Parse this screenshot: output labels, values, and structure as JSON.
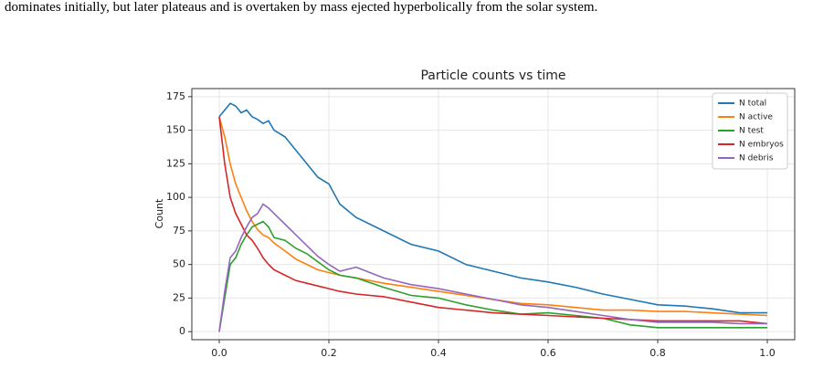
{
  "caption_line": "dominates initially, but later plateaus and is overtaken by mass ejected hyperbolically from the solar system.",
  "chart_data": {
    "type": "line",
    "title": "Particle counts vs time",
    "ylabel": "Count",
    "x": [
      0,
      0.01,
      0.02,
      0.03,
      0.04,
      0.05,
      0.06,
      0.07,
      0.08,
      0.09,
      0.1,
      0.12,
      0.14,
      0.16,
      0.18,
      0.2,
      0.22,
      0.25,
      0.3,
      0.35,
      0.4,
      0.45,
      0.5,
      0.55,
      0.6,
      0.65,
      0.7,
      0.75,
      0.8,
      0.85,
      0.9,
      0.95,
      1.0
    ],
    "series": [
      {
        "name": "N total",
        "color": "#1f77b4",
        "values": [
          160,
          165,
          170,
          168,
          163,
          165,
          160,
          158,
          155,
          157,
          150,
          145,
          135,
          125,
          115,
          110,
          95,
          85,
          75,
          65,
          60,
          50,
          45,
          40,
          37,
          33,
          28,
          24,
          20,
          19,
          17,
          14,
          14
        ]
      },
      {
        "name": "N active",
        "color": "#ff7f0e",
        "values": [
          160,
          145,
          125,
          110,
          100,
          90,
          82,
          76,
          72,
          70,
          66,
          60,
          54,
          50,
          46,
          44,
          42,
          40,
          36,
          33,
          30,
          27,
          24,
          21,
          20,
          18,
          16,
          16,
          15,
          15,
          14,
          13,
          12
        ]
      },
      {
        "name": "N test",
        "color": "#2ca02c",
        "values": [
          0,
          25,
          50,
          55,
          65,
          72,
          78,
          80,
          82,
          78,
          70,
          68,
          62,
          58,
          52,
          46,
          42,
          40,
          33,
          27,
          25,
          20,
          16,
          13,
          14,
          12,
          10,
          5,
          3,
          3,
          3,
          3,
          3
        ]
      },
      {
        "name": "N embryos",
        "color": "#d62728",
        "values": [
          160,
          125,
          100,
          88,
          80,
          72,
          68,
          62,
          55,
          50,
          46,
          42,
          38,
          36,
          34,
          32,
          30,
          28,
          26,
          22,
          18,
          16,
          14,
          13,
          12,
          11,
          10,
          9,
          8,
          8,
          8,
          8,
          6
        ]
      },
      {
        "name": "N debris",
        "color": "#9467bd",
        "values": [
          0,
          30,
          55,
          60,
          70,
          78,
          85,
          88,
          95,
          92,
          88,
          80,
          72,
          64,
          56,
          50,
          45,
          48,
          40,
          35,
          32,
          28,
          24,
          20,
          18,
          15,
          12,
          9,
          7,
          7,
          7,
          6,
          6
        ]
      }
    ],
    "xlim": [
      -0.05,
      1.05
    ],
    "ylim": [
      -6,
      181
    ],
    "xticks": [
      {
        "value": 0,
        "label": "0.0"
      },
      0.2,
      0.4,
      0.6,
      0.8,
      {
        "value": 1,
        "label": "1.0"
      }
    ],
    "yticks": [
      0,
      25,
      50,
      75,
      100,
      125,
      150,
      175
    ],
    "grid": true,
    "legend": "upper right"
  }
}
